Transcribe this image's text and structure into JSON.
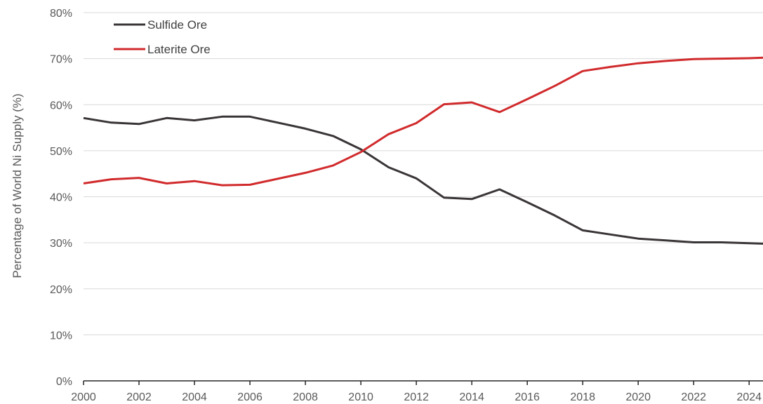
{
  "chart_data": {
    "type": "line",
    "title": "",
    "xlabel": "",
    "ylabel": "Percentage of World Ni Supply  (%)",
    "x": [
      2000,
      2001,
      2002,
      2003,
      2004,
      2005,
      2006,
      2007,
      2008,
      2009,
      2010,
      2011,
      2012,
      2013,
      2014,
      2015,
      2016,
      2017,
      2018,
      2019,
      2020,
      2021,
      2022,
      2023,
      2024,
      2024.5
    ],
    "xlim": [
      2000,
      2024.5
    ],
    "ylim": [
      0,
      80
    ],
    "x_tick_values": [
      2000,
      2002,
      2004,
      2006,
      2008,
      2010,
      2012,
      2014,
      2016,
      2018,
      2020,
      2022,
      2024
    ],
    "x_tick_labels": [
      "2000",
      "2002",
      "2004",
      "2006",
      "2008",
      "2010",
      "2012",
      "2014",
      "2016",
      "2018",
      "2020",
      "2022",
      "2024"
    ],
    "y_tick_values": [
      0,
      10,
      20,
      30,
      40,
      50,
      60,
      70,
      80
    ],
    "y_tick_labels": [
      "0%",
      "10%",
      "20%",
      "30%",
      "40%",
      "50%",
      "60%",
      "70%",
      "80%"
    ],
    "grid": "horizontal",
    "legend_position": "top-left",
    "series": [
      {
        "name": "Sulfide Ore",
        "color": "#3a3536",
        "values": [
          57.1,
          56.1,
          55.8,
          57.1,
          56.6,
          57.4,
          57.4,
          56.1,
          54.8,
          53.2,
          50.3,
          46.4,
          44.0,
          39.8,
          39.5,
          41.6,
          38.8,
          35.9,
          32.7,
          31.8,
          30.9,
          30.5,
          30.1,
          30.1,
          29.9,
          29.8
        ]
      },
      {
        "name": "Laterite Ore",
        "color": "#d12a2c",
        "values": [
          42.9,
          43.8,
          44.1,
          42.9,
          43.4,
          42.5,
          42.6,
          43.9,
          45.2,
          46.8,
          49.7,
          53.6,
          56.0,
          60.1,
          60.5,
          58.4,
          61.2,
          64.1,
          67.3,
          68.2,
          69.0,
          69.5,
          69.9,
          70.0,
          70.1,
          70.2
        ]
      }
    ]
  }
}
